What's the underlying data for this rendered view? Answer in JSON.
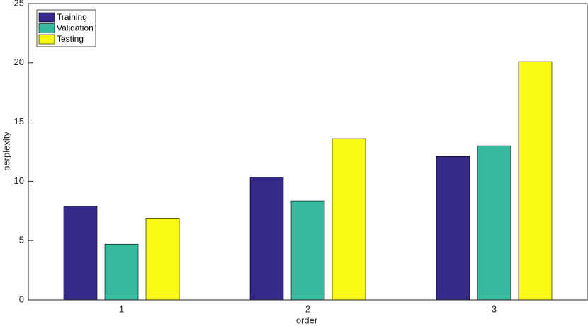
{
  "chart_data": {
    "type": "bar",
    "xlabel": "order",
    "ylabel": "perplexity",
    "categories": [
      "1",
      "2",
      "3"
    ],
    "series": [
      {
        "name": "Training",
        "color": "#352a87",
        "values": [
          7.9,
          10.35,
          12.1
        ]
      },
      {
        "name": "Validation",
        "color": "#38b89c",
        "values": [
          4.7,
          8.35,
          13.0
        ]
      },
      {
        "name": "Testing",
        "color": "#f9fa14",
        "values": [
          6.9,
          13.6,
          20.1
        ]
      }
    ],
    "ylim": [
      0,
      25
    ],
    "yticks": [
      0,
      5,
      10,
      15,
      20,
      25
    ],
    "grid": false,
    "legend": "upper-left"
  }
}
